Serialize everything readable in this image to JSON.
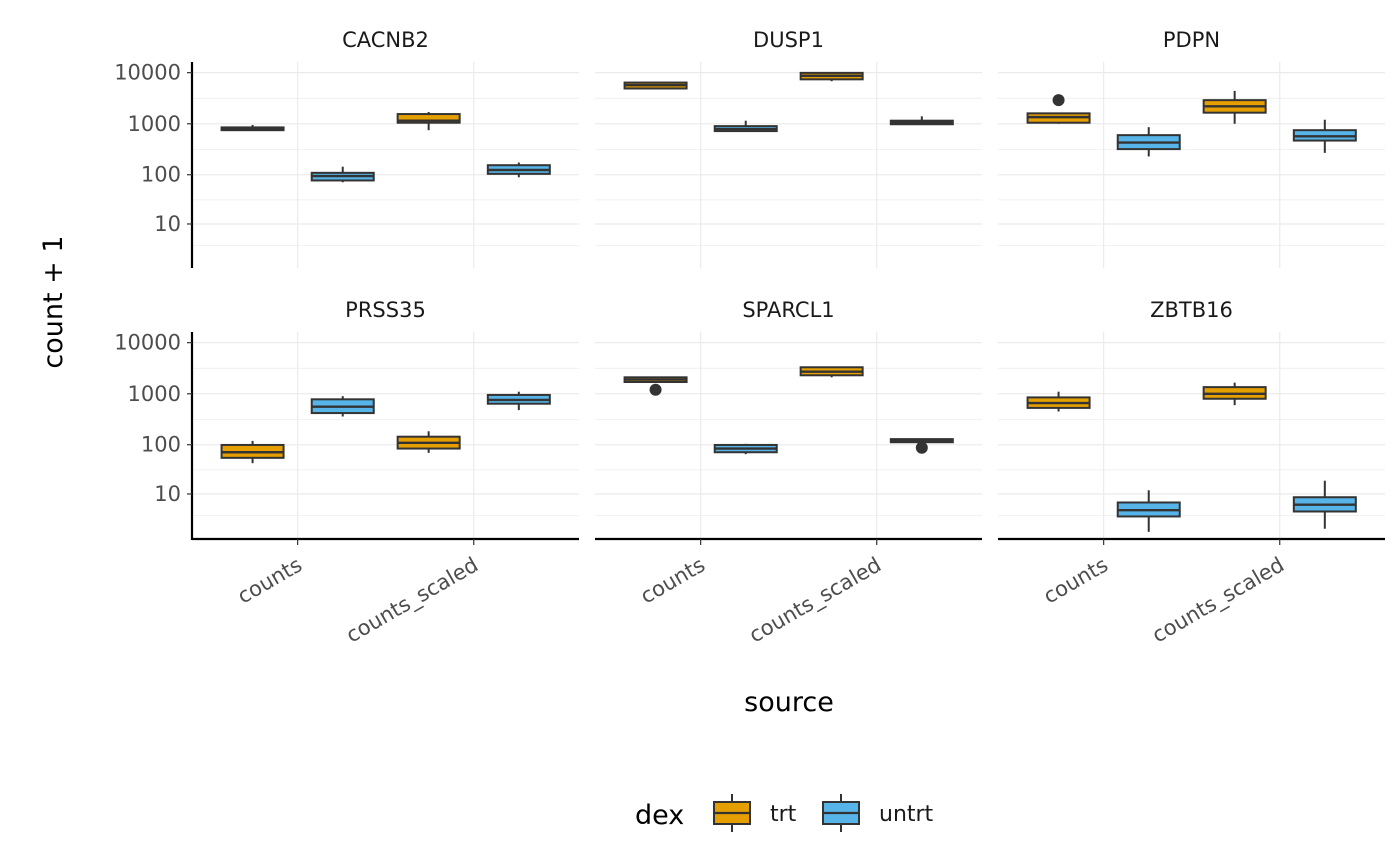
{
  "chart_data": {
    "type": "box",
    "facet_by": "symbol",
    "facet_layout": "3 columns x 2 rows",
    "x_title": "source",
    "y_title": "count + 1",
    "y_scale": "log10",
    "y_ticks": [
      "10",
      "100",
      "1000",
      "10000"
    ],
    "y_tick_values": [
      10,
      100,
      1000,
      10000
    ],
    "ylim": [
      2,
      14000
    ],
    "x_categories": [
      "counts",
      "counts_scaled"
    ],
    "legend": {
      "title": "dex",
      "position": "bottom",
      "groups": [
        {
          "name": "trt",
          "color": "#E69F00"
        },
        {
          "name": "untrt",
          "color": "#56B4E9"
        }
      ]
    },
    "grid": true,
    "colors": {
      "box_outline": "#333333",
      "grid": "#ebebeb",
      "axis": "#000000"
    },
    "facets": [
      {
        "title": "CACNB2",
        "boxes": [
          {
            "x": "counts",
            "group": "trt",
            "min": 740,
            "q1": 750,
            "median": 800,
            "q3": 850,
            "max": 950,
            "outliers": []
          },
          {
            "x": "counts",
            "group": "untrt",
            "min": 72,
            "q1": 78,
            "median": 95,
            "q3": 110,
            "max": 145,
            "outliers": []
          },
          {
            "x": "counts_scaled",
            "group": "trt",
            "min": 750,
            "q1": 1050,
            "median": 1150,
            "q3": 1550,
            "max": 1700,
            "outliers": []
          },
          {
            "x": "counts_scaled",
            "group": "untrt",
            "min": 90,
            "q1": 105,
            "median": 125,
            "q3": 155,
            "max": 175,
            "outliers": []
          }
        ]
      },
      {
        "title": "DUSP1",
        "boxes": [
          {
            "x": "counts",
            "group": "trt",
            "min": 4700,
            "q1": 4900,
            "median": 5700,
            "q3": 6400,
            "max": 6500,
            "outliers": []
          },
          {
            "x": "counts",
            "group": "untrt",
            "min": 700,
            "q1": 720,
            "median": 790,
            "q3": 900,
            "max": 1150,
            "outliers": []
          },
          {
            "x": "counts_scaled",
            "group": "trt",
            "min": 6800,
            "q1": 7400,
            "median": 8700,
            "q3": 9900,
            "max": 10200,
            "outliers": []
          },
          {
            "x": "counts_scaled",
            "group": "untrt",
            "min": 950,
            "q1": 980,
            "median": 1050,
            "q3": 1150,
            "max": 1400,
            "outliers": []
          }
        ]
      },
      {
        "title": "PDPN",
        "boxes": [
          {
            "x": "counts",
            "group": "trt",
            "min": 1000,
            "q1": 1050,
            "median": 1350,
            "q3": 1600,
            "max": 1650,
            "outliers": [
              2900
            ]
          },
          {
            "x": "counts",
            "group": "untrt",
            "min": 230,
            "q1": 320,
            "median": 430,
            "q3": 600,
            "max": 860,
            "outliers": []
          },
          {
            "x": "counts_scaled",
            "group": "trt",
            "min": 1000,
            "q1": 1650,
            "median": 2200,
            "q3": 2900,
            "max": 4400,
            "outliers": []
          },
          {
            "x": "counts_scaled",
            "group": "untrt",
            "min": 270,
            "q1": 470,
            "median": 570,
            "q3": 750,
            "max": 1200,
            "outliers": []
          }
        ]
      },
      {
        "title": "PRSS35",
        "boxes": [
          {
            "x": "counts",
            "group": "trt",
            "min": 44,
            "q1": 56,
            "median": 72,
            "q3": 100,
            "max": 120,
            "outliers": []
          },
          {
            "x": "counts",
            "group": "untrt",
            "min": 360,
            "q1": 420,
            "median": 560,
            "q3": 780,
            "max": 900,
            "outliers": []
          },
          {
            "x": "counts_scaled",
            "group": "trt",
            "min": 70,
            "q1": 85,
            "median": 110,
            "q3": 145,
            "max": 185,
            "outliers": []
          },
          {
            "x": "counts_scaled",
            "group": "untrt",
            "min": 480,
            "q1": 640,
            "median": 760,
            "q3": 950,
            "max": 1100,
            "outliers": []
          }
        ]
      },
      {
        "title": "SPARCL1",
        "boxes": [
          {
            "x": "counts",
            "group": "trt",
            "min": 1650,
            "q1": 1700,
            "median": 1900,
            "q3": 2100,
            "max": 2150,
            "outliers": [
              1200
            ]
          },
          {
            "x": "counts",
            "group": "untrt",
            "min": 66,
            "q1": 72,
            "median": 85,
            "q3": 100,
            "max": 105,
            "outliers": []
          },
          {
            "x": "counts_scaled",
            "group": "trt",
            "min": 2100,
            "q1": 2300,
            "median": 2700,
            "q3": 3300,
            "max": 3400,
            "outliers": []
          },
          {
            "x": "counts_scaled",
            "group": "untrt",
            "min": 110,
            "q1": 113,
            "median": 120,
            "q3": 130,
            "max": 132,
            "outliers": [
              88
            ]
          }
        ]
      },
      {
        "title": "ZBTB16",
        "boxes": [
          {
            "x": "counts",
            "group": "trt",
            "min": 450,
            "q1": 530,
            "median": 660,
            "q3": 850,
            "max": 1100,
            "outliers": []
          },
          {
            "x": "counts",
            "group": "untrt",
            "min": 2,
            "q1": 4,
            "median": 5.3,
            "q3": 7.5,
            "max": 13,
            "outliers": []
          },
          {
            "x": "counts_scaled",
            "group": "trt",
            "min": 600,
            "q1": 800,
            "median": 1000,
            "q3": 1350,
            "max": 1650,
            "outliers": []
          },
          {
            "x": "counts_scaled",
            "group": "untrt",
            "min": 2.3,
            "q1": 5,
            "median": 6.8,
            "q3": 9.5,
            "max": 20,
            "outliers": []
          }
        ]
      }
    ]
  }
}
